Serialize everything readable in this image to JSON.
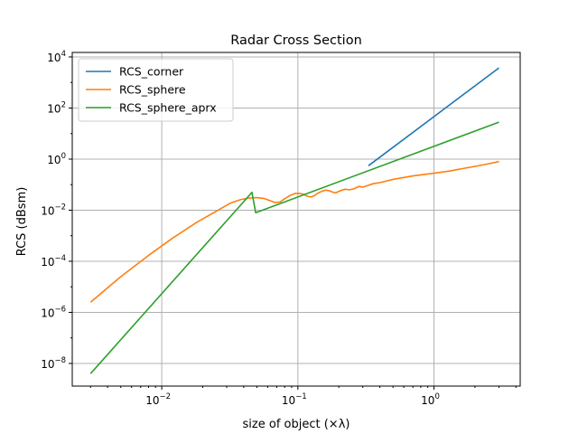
{
  "chart_data": {
    "type": "line",
    "title": "Radar Cross Section",
    "xlabel": "size of object (×λ)",
    "ylabel": "RCS (dBsm)",
    "xscale": "log",
    "yscale": "log",
    "xlim": [
      0.0022,
      4.3
    ],
    "ylim": [
      1.3e-09,
      15000.0
    ],
    "xticks": [
      {
        "value": 0.01,
        "base": "10",
        "exp": "−2"
      },
      {
        "value": 0.1,
        "base": "10",
        "exp": "−1"
      },
      {
        "value": 1,
        "base": "10",
        "exp": "0"
      }
    ],
    "yticks": [
      {
        "value": 1e-08,
        "base": "10",
        "exp": "−8"
      },
      {
        "value": 1e-06,
        "base": "10",
        "exp": "−6"
      },
      {
        "value": 0.0001,
        "base": "10",
        "exp": "−4"
      },
      {
        "value": 0.01,
        "base": "10",
        "exp": "−2"
      },
      {
        "value": 1,
        "base": "10",
        "exp": "0"
      },
      {
        "value": 100,
        "base": "10",
        "exp": "2"
      },
      {
        "value": 10000,
        "base": "10",
        "exp": "4"
      }
    ],
    "grid": true,
    "legend": "top-left",
    "series": [
      {
        "name": "RCS_corner",
        "color": "#1f77b4",
        "points": [
          [
            0.33,
            0.55
          ],
          [
            3.0,
            3700
          ]
        ]
      },
      {
        "name": "RCS_sphere",
        "color": "#ff7f0e",
        "points": [
          [
            0.003,
            2.5e-06
          ],
          [
            0.005,
            2.5e-05
          ],
          [
            0.008,
            0.00017
          ],
          [
            0.012,
            0.0008
          ],
          [
            0.018,
            0.0033
          ],
          [
            0.025,
            0.009
          ],
          [
            0.032,
            0.019
          ],
          [
            0.038,
            0.026
          ],
          [
            0.044,
            0.03
          ],
          [
            0.05,
            0.031
          ],
          [
            0.056,
            0.029
          ],
          [
            0.062,
            0.024
          ],
          [
            0.068,
            0.02
          ],
          [
            0.074,
            0.021
          ],
          [
            0.08,
            0.028
          ],
          [
            0.088,
            0.038
          ],
          [
            0.095,
            0.045
          ],
          [
            0.102,
            0.046
          ],
          [
            0.11,
            0.042
          ],
          [
            0.118,
            0.035
          ],
          [
            0.125,
            0.033
          ],
          [
            0.132,
            0.037
          ],
          [
            0.14,
            0.046
          ],
          [
            0.15,
            0.055
          ],
          [
            0.16,
            0.061
          ],
          [
            0.17,
            0.058
          ],
          [
            0.18,
            0.051
          ],
          [
            0.19,
            0.048
          ],
          [
            0.2,
            0.055
          ],
          [
            0.22,
            0.066
          ],
          [
            0.24,
            0.063
          ],
          [
            0.26,
            0.07
          ],
          [
            0.28,
            0.085
          ],
          [
            0.3,
            0.08
          ],
          [
            0.33,
            0.095
          ],
          [
            0.36,
            0.11
          ],
          [
            0.4,
            0.12
          ],
          [
            0.45,
            0.14
          ],
          [
            0.5,
            0.16
          ],
          [
            0.6,
            0.19
          ],
          [
            0.7,
            0.22
          ],
          [
            0.8,
            0.24
          ],
          [
            1.0,
            0.28
          ],
          [
            1.3,
            0.34
          ],
          [
            1.6,
            0.42
          ],
          [
            2.0,
            0.52
          ],
          [
            2.5,
            0.65
          ],
          [
            3.0,
            0.8
          ]
        ]
      },
      {
        "name": "RCS_sphere_aprx",
        "color": "#2ca02c",
        "points": [
          [
            0.003,
            4e-09
          ],
          [
            0.046,
            0.05
          ],
          [
            0.049,
            0.008
          ],
          [
            3.0,
            28
          ]
        ]
      }
    ]
  }
}
